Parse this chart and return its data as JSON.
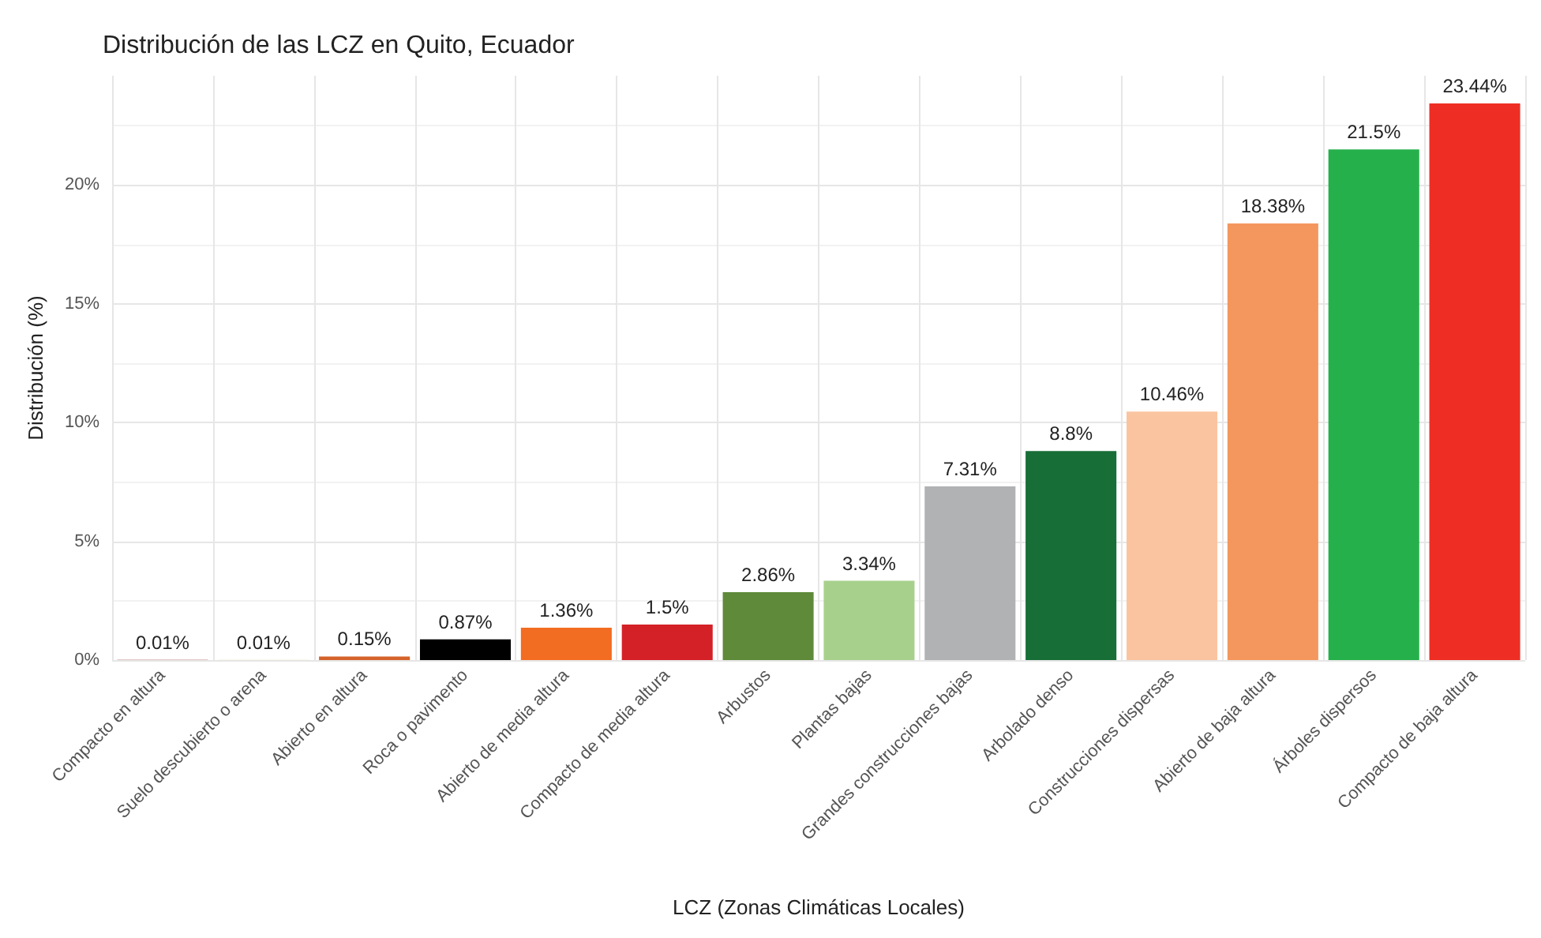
{
  "chart_data": {
    "type": "bar",
    "title": "Distribución de las LCZ en Quito, Ecuador",
    "xlabel": "LCZ (Zonas Climáticas Locales)",
    "ylabel": "Distribución (%)",
    "categories": [
      "Compacto en altura",
      "Suelo descubierto o arena",
      "Abierto en altura",
      "Roca o pavimento",
      "Abierto de media altura",
      "Compacto de media altura",
      "Arbustos",
      "Plantas bajas",
      "Grandes construcciones bajas",
      "Arbolado denso",
      "Construcciones dispersas",
      "Abierto de baja altura",
      "Árboles dispersos",
      "Compacto de baja altura"
    ],
    "values": [
      0.01,
      0.01,
      0.15,
      0.87,
      1.36,
      1.5,
      2.86,
      3.34,
      7.31,
      8.8,
      10.46,
      18.38,
      21.5,
      23.44
    ],
    "value_labels": [
      "0.01%",
      "0.01%",
      "0.15%",
      "0.87%",
      "1.36%",
      "1.5%",
      "2.86%",
      "3.34%",
      "7.31%",
      "8.8%",
      "10.46%",
      "18.38%",
      "21.5%",
      "23.44%"
    ],
    "colors": [
      "#8c1a1a",
      "#e8d8b0",
      "#d4622a",
      "#000000",
      "#f26c22",
      "#d42127",
      "#5e8a3a",
      "#a8d08d",
      "#b0b2b4",
      "#176e37",
      "#fbc4a0",
      "#f4975f",
      "#26b04b",
      "#ee2e24"
    ],
    "ylim": [
      0,
      24.6
    ],
    "yticks": [
      {
        "value": 0,
        "label": "0%"
      },
      {
        "value": 5,
        "label": "5%"
      },
      {
        "value": 10,
        "label": "10%"
      },
      {
        "value": 15,
        "label": "15%"
      },
      {
        "value": 20,
        "label": "20%"
      }
    ],
    "grid": true
  }
}
